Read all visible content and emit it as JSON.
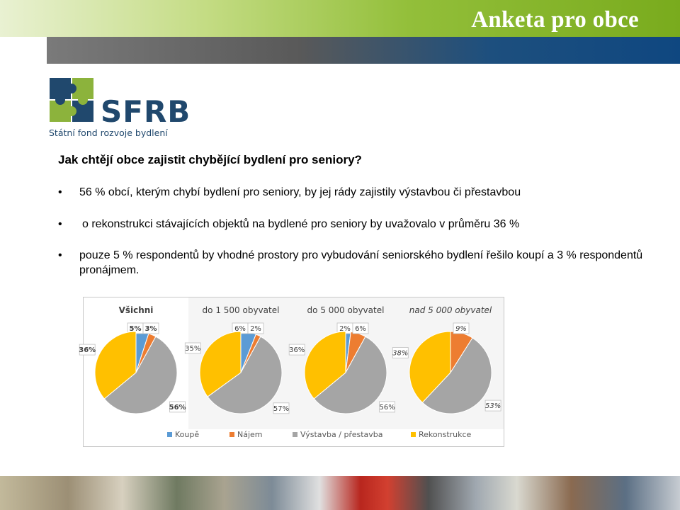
{
  "slide": {
    "title": "Anketa pro obce"
  },
  "logo": {
    "text": "SFRB",
    "subtitle": "Státní fond rozvoje bydlení",
    "colors": [
      "#20486d",
      "#8cb33c"
    ]
  },
  "question": "Jak chtějí obce zajistit chybějící bydlení pro seniory?",
  "bullets": [
    {
      "symbol": "•",
      "text": "56 % obcí, kterým chybí bydlení pro seniory, by jej rády zajistily výstavbou či přestavbou"
    },
    {
      "symbol": "•",
      "text": "o rekonstrukci stávajících objektů na bydlené pro seniory by uvažovalo v průměru 36 %"
    },
    {
      "symbol": "•",
      "text": "pouze 5 % respondentů by vhodné prostory pro vybudování seniorského bydlení řešilo koupí a 3 % respondentů pronájmem."
    }
  ],
  "chart_data": {
    "type": "pie",
    "categories": [
      "Koupě",
      "Nájem",
      "Výstavba / přestavba",
      "Rekonstrukce"
    ],
    "colors": [
      "#5b9bd5",
      "#ed7d31",
      "#a5a5a5",
      "#ffc000"
    ],
    "legend_position": "bottom",
    "pies": [
      {
        "name": "Všichni",
        "values": [
          5,
          3,
          56,
          36
        ],
        "labels": [
          "5%",
          "3%",
          "56%",
          "36%"
        ]
      },
      {
        "name": "do 1 500 obyvatel",
        "values": [
          6,
          2,
          57,
          35
        ],
        "labels": [
          "6%",
          "2%",
          "57%",
          "35%"
        ]
      },
      {
        "name": "do 5 000 obyvatel",
        "values": [
          2,
          6,
          56,
          36
        ],
        "labels": [
          "2%",
          "6%",
          "56%",
          "36%"
        ]
      },
      {
        "name": "nad 5 000 obyvatel",
        "values": [
          0,
          9,
          53,
          38
        ],
        "labels": [
          "",
          "9%",
          "53%",
          "38%"
        ]
      }
    ]
  }
}
